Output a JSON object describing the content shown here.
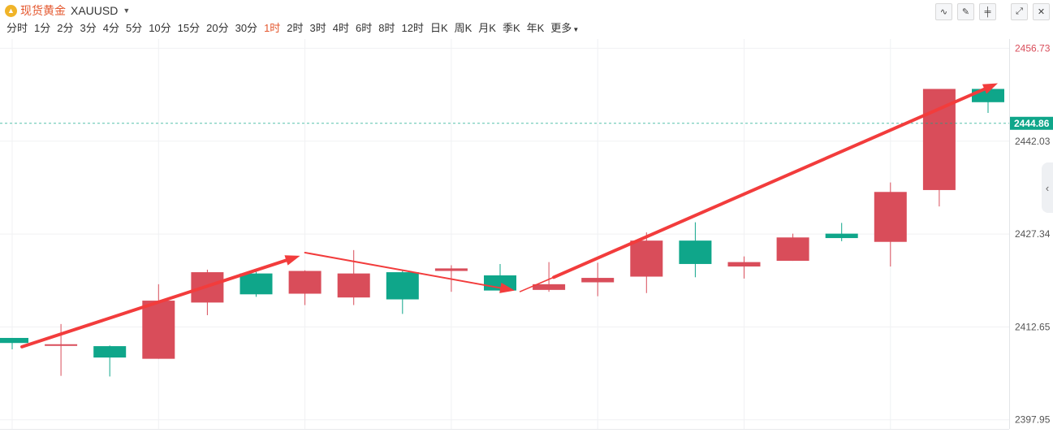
{
  "header": {
    "symbol_icon": "gold-coin-icon",
    "symbol_name": "现货黄金",
    "symbol_code": "XAUUSD",
    "tools": [
      {
        "name": "indicator-tool",
        "glyph": "∿"
      },
      {
        "name": "draw-tool",
        "glyph": "✎"
      },
      {
        "name": "candle-style-tool",
        "glyph": "╪"
      },
      {
        "name": "fullscreen-tool",
        "glyph": "⤢"
      },
      {
        "name": "close-tool",
        "glyph": "✕"
      }
    ]
  },
  "periods": [
    "分时",
    "1分",
    "2分",
    "3分",
    "4分",
    "5分",
    "10分",
    "15分",
    "20分",
    "30分",
    "1时",
    "2时",
    "3时",
    "4时",
    "6时",
    "8时",
    "12时",
    "日K",
    "周K",
    "月K",
    "季K",
    "年K"
  ],
  "active_period": "1时",
  "more_label": "更多",
  "colors": {
    "up": "#d94d5a",
    "down": "#0fa68a",
    "arrow": "#f23c3c",
    "grid": "#f0f1f3",
    "current_price_bg": "#0fa68a"
  },
  "chart_data": {
    "type": "candlestick",
    "ylim": [
      2396.5,
      2458.2
    ],
    "y_ticks": [
      2456.73,
      2442.03,
      2427.34,
      2412.65,
      2397.95
    ],
    "y_tick_labels": [
      "2456.73",
      "2442.03",
      "2427.34",
      "2412.65",
      "2397.95"
    ],
    "current_price": 2444.86,
    "current_price_label": "2444.86",
    "candles": [
      {
        "open": 2410.9,
        "close": 2410.1,
        "high": 2410.9,
        "low": 2409.1
      },
      {
        "open": 2409.7,
        "close": 2409.9,
        "high": 2413.1,
        "low": 2404.9
      },
      {
        "open": 2409.6,
        "close": 2407.8,
        "high": 2409.7,
        "low": 2404.8
      },
      {
        "open": 2407.6,
        "close": 2416.8,
        "high": 2419.4,
        "low": 2407.6
      },
      {
        "open": 2416.5,
        "close": 2421.3,
        "high": 2421.7,
        "low": 2414.5
      },
      {
        "open": 2421.1,
        "close": 2417.8,
        "high": 2421.7,
        "low": 2417.4
      },
      {
        "open": 2417.9,
        "close": 2421.5,
        "high": 2421.6,
        "low": 2416.1
      },
      {
        "open": 2417.3,
        "close": 2421.1,
        "high": 2424.8,
        "low": 2416.1
      },
      {
        "open": 2421.3,
        "close": 2417.0,
        "high": 2421.7,
        "low": 2414.7
      },
      {
        "open": 2421.5,
        "close": 2421.9,
        "high": 2422.4,
        "low": 2418.2
      },
      {
        "open": 2420.8,
        "close": 2418.4,
        "high": 2422.6,
        "low": 2418.2
      },
      {
        "open": 2418.5,
        "close": 2419.4,
        "high": 2422.9,
        "low": 2418.2
      },
      {
        "open": 2419.7,
        "close": 2420.4,
        "high": 2422.8,
        "low": 2417.5
      },
      {
        "open": 2420.6,
        "close": 2426.3,
        "high": 2427.6,
        "low": 2418.0
      },
      {
        "open": 2426.3,
        "close": 2422.6,
        "high": 2429.2,
        "low": 2420.5
      },
      {
        "open": 2422.2,
        "close": 2422.9,
        "high": 2423.8,
        "low": 2420.3
      },
      {
        "open": 2423.1,
        "close": 2426.8,
        "high": 2427.4,
        "low": 2423.1
      },
      {
        "open": 2427.4,
        "close": 2426.7,
        "high": 2429.1,
        "low": 2426.2
      },
      {
        "open": 2426.1,
        "close": 2434.0,
        "high": 2435.5,
        "low": 2422.2
      },
      {
        "open": 2434.3,
        "close": 2450.3,
        "high": 2450.3,
        "low": 2431.7
      },
      {
        "open": 2450.3,
        "close": 2448.2,
        "high": 2450.3,
        "low": 2446.5
      }
    ],
    "annotations": [
      {
        "type": "arrow",
        "from": {
          "index": 0.2,
          "price": 2409.5
        },
        "to": {
          "index": 5.9,
          "price": 2423.9
        },
        "width": 4
      },
      {
        "type": "arrow",
        "from": {
          "index": 6.0,
          "price": 2424.4
        },
        "to": {
          "index": 10.3,
          "price": 2418.4
        },
        "width": 2
      },
      {
        "type": "line",
        "from": {
          "index": 10.4,
          "price": 2418.2
        },
        "to": {
          "index": 11.1,
          "price": 2420.5
        },
        "width": 1.6
      },
      {
        "type": "arrow",
        "from": {
          "index": 11.1,
          "price": 2420.5
        },
        "to": {
          "index": 20.2,
          "price": 2451.2
        },
        "width": 4
      }
    ]
  }
}
